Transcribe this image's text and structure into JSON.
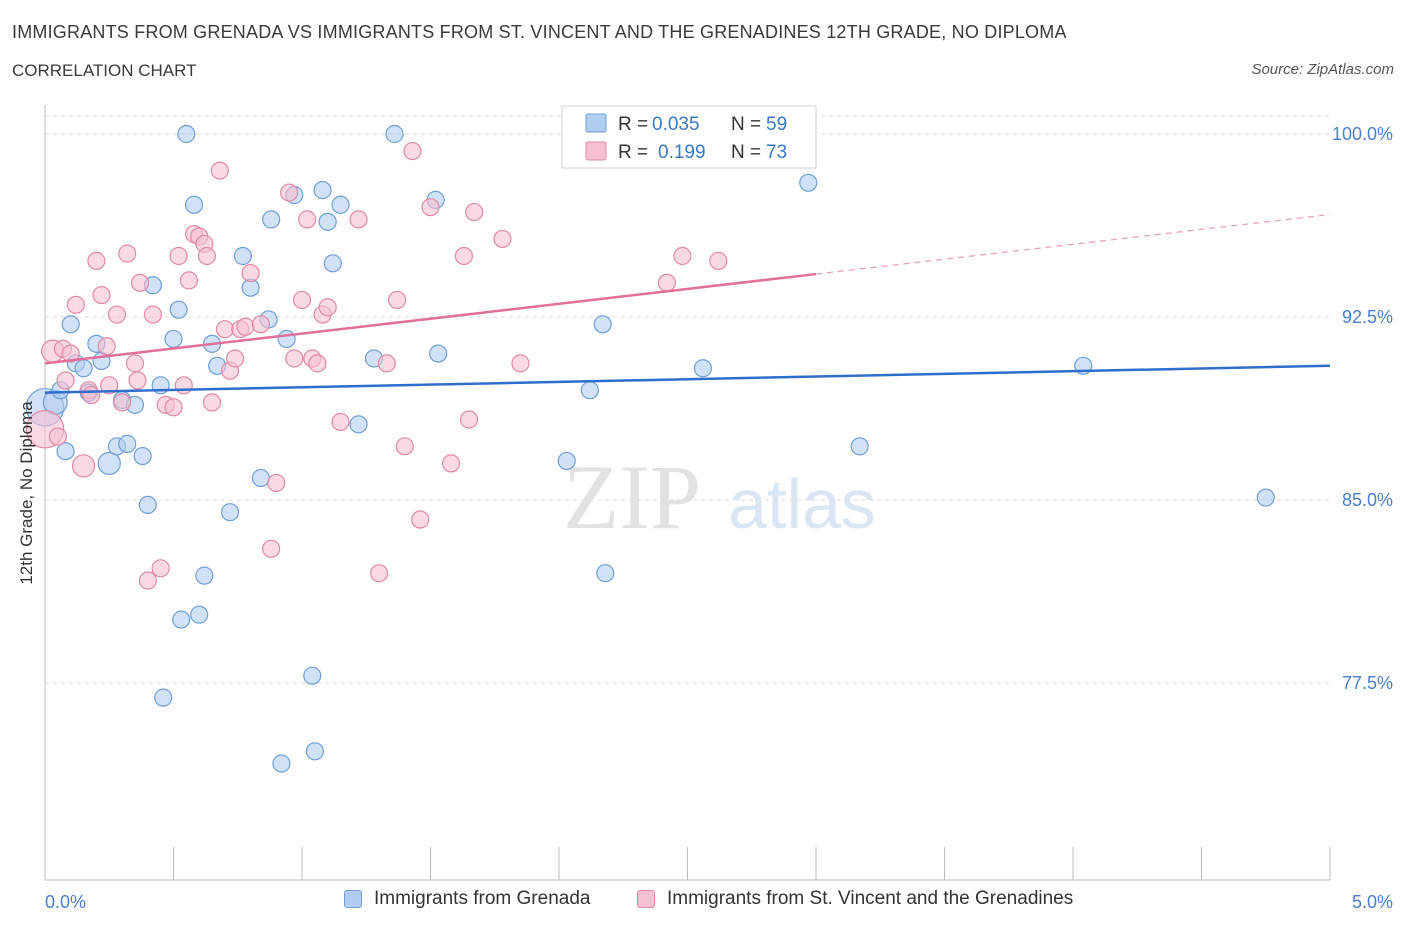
{
  "header": {
    "title": "IMMIGRANTS FROM GRENADA VS IMMIGRANTS FROM ST. VINCENT AND THE GRENADINES 12TH GRADE, NO DIPLOMA",
    "subtitle": "CORRELATION CHART",
    "source": "Source: ZipAtlas.com"
  },
  "watermark": {
    "zip": "ZIP",
    "atlas": "atlas"
  },
  "colors": {
    "blue_fill": "#b3cdf0",
    "blue_stroke": "#6f9fd8",
    "blue_line": "#2f6fcc",
    "pink_fill": "#f5c0d0",
    "pink_stroke": "#e08aa5",
    "pink_line": "#e0709a",
    "tick_label": "#4a7fcc",
    "grid": "#d8d8d8"
  },
  "chart_data": {
    "type": "scatter",
    "xlabel": "",
    "ylabel": "12th Grade, No Diploma",
    "xlim": [
      0.0,
      5.0
    ],
    "ylim": [
      70.0,
      101.0
    ],
    "x_tick_labels": [
      "0.0%",
      "5.0%"
    ],
    "y_ticks": [
      77.5,
      85.0,
      92.5,
      100.0
    ],
    "y_tick_labels": [
      "77.5%",
      "85.0%",
      "92.5%",
      "100.0%"
    ],
    "grid": true,
    "legend_position": "top-center",
    "stats": [
      {
        "r_label": "R =",
        "r_value": "0.035",
        "n_label": "N =",
        "n_value": "59"
      },
      {
        "r_label": "R =",
        "r_value": "0.199",
        "n_label": "N =",
        "n_value": "73"
      }
    ],
    "series": [
      {
        "name": "Immigrants from Grenada",
        "trend": {
          "x": [
            0.0,
            5.0
          ],
          "y": [
            89.4,
            90.5
          ],
          "dash_from": null
        },
        "points": [
          [
            0.0,
            88.8,
            2.2
          ],
          [
            0.04,
            89.0,
            1.4
          ],
          [
            0.06,
            89.5,
            1
          ],
          [
            0.08,
            87.0,
            1
          ],
          [
            0.1,
            92.2,
            1
          ],
          [
            0.12,
            90.6,
            1
          ],
          [
            0.15,
            90.4,
            1
          ],
          [
            0.17,
            89.4,
            1
          ],
          [
            0.2,
            91.4,
            1
          ],
          [
            0.22,
            90.7,
            1
          ],
          [
            0.25,
            86.5,
            1.3
          ],
          [
            0.28,
            87.2,
            1
          ],
          [
            0.3,
            89.1,
            1
          ],
          [
            0.32,
            87.3,
            1
          ],
          [
            0.35,
            88.9,
            1
          ],
          [
            0.38,
            86.8,
            1
          ],
          [
            0.4,
            84.8,
            1
          ],
          [
            0.42,
            93.8,
            1
          ],
          [
            0.45,
            89.7,
            1
          ],
          [
            0.46,
            76.9,
            1
          ],
          [
            0.5,
            91.6,
            1
          ],
          [
            0.52,
            92.8,
            1
          ],
          [
            0.53,
            80.1,
            1
          ],
          [
            0.55,
            100.0,
            1
          ],
          [
            0.58,
            97.1,
            1
          ],
          [
            0.6,
            80.3,
            1
          ],
          [
            0.62,
            81.9,
            1
          ],
          [
            0.65,
            91.4,
            1
          ],
          [
            0.67,
            90.5,
            1
          ],
          [
            0.72,
            84.5,
            1
          ],
          [
            0.77,
            95.0,
            1
          ],
          [
            0.8,
            93.7,
            1
          ],
          [
            0.84,
            85.9,
            1
          ],
          [
            0.87,
            92.4,
            1
          ],
          [
            0.88,
            96.5,
            1
          ],
          [
            0.92,
            74.2,
            1
          ],
          [
            0.94,
            91.6,
            1
          ],
          [
            0.97,
            97.5,
            1
          ],
          [
            1.04,
            77.8,
            1
          ],
          [
            1.05,
            74.7,
            1
          ],
          [
            1.08,
            97.7,
            1
          ],
          [
            1.1,
            96.4,
            1
          ],
          [
            1.12,
            94.7,
            1
          ],
          [
            1.15,
            97.1,
            1
          ],
          [
            1.22,
            88.1,
            1
          ],
          [
            1.28,
            90.8,
            1
          ],
          [
            1.36,
            100.0,
            1
          ],
          [
            1.52,
            97.3,
            1
          ],
          [
            1.53,
            91.0,
            1
          ],
          [
            2.03,
            86.6,
            1
          ],
          [
            2.12,
            89.5,
            1
          ],
          [
            2.17,
            92.2,
            1
          ],
          [
            2.18,
            82.0,
            1
          ],
          [
            2.56,
            90.4,
            1
          ],
          [
            2.97,
            98.0,
            1
          ],
          [
            3.17,
            87.2,
            1
          ],
          [
            4.04,
            90.5,
            1
          ],
          [
            4.75,
            85.1,
            1
          ]
        ]
      },
      {
        "name": "Immigrants from St. Vincent and the Grenadines",
        "trend": {
          "x": [
            0.0,
            5.0
          ],
          "y": [
            90.6,
            96.7
          ],
          "dash_from": 3.0
        },
        "points": [
          [
            0.0,
            87.9,
            2.2
          ],
          [
            0.03,
            91.1,
            1.3
          ],
          [
            0.05,
            87.6,
            1
          ],
          [
            0.07,
            91.2,
            1
          ],
          [
            0.08,
            89.9,
            1
          ],
          [
            0.1,
            91.0,
            1
          ],
          [
            0.12,
            93.0,
            1
          ],
          [
            0.15,
            86.4,
            1.3
          ],
          [
            0.17,
            89.5,
            1
          ],
          [
            0.18,
            89.3,
            1
          ],
          [
            0.2,
            94.8,
            1
          ],
          [
            0.22,
            93.4,
            1
          ],
          [
            0.24,
            91.3,
            1
          ],
          [
            0.25,
            89.7,
            1
          ],
          [
            0.28,
            92.6,
            1
          ],
          [
            0.3,
            89.0,
            1
          ],
          [
            0.32,
            95.1,
            1
          ],
          [
            0.35,
            90.6,
            1
          ],
          [
            0.36,
            89.9,
            1
          ],
          [
            0.37,
            93.9,
            1
          ],
          [
            0.4,
            81.7,
            1
          ],
          [
            0.42,
            92.6,
            1
          ],
          [
            0.45,
            82.2,
            1
          ],
          [
            0.47,
            88.9,
            1
          ],
          [
            0.5,
            88.8,
            1
          ],
          [
            0.52,
            95.0,
            1
          ],
          [
            0.54,
            89.7,
            1
          ],
          [
            0.56,
            94.0,
            1
          ],
          [
            0.58,
            95.9,
            1
          ],
          [
            0.6,
            95.8,
            1
          ],
          [
            0.62,
            95.5,
            1
          ],
          [
            0.63,
            95.0,
            1
          ],
          [
            0.65,
            89.0,
            1
          ],
          [
            0.68,
            98.5,
            1
          ],
          [
            0.7,
            92.0,
            1
          ],
          [
            0.72,
            90.3,
            1
          ],
          [
            0.74,
            90.8,
            1
          ],
          [
            0.76,
            92.0,
            1
          ],
          [
            0.78,
            92.1,
            1
          ],
          [
            0.8,
            94.3,
            1
          ],
          [
            0.84,
            92.2,
            1
          ],
          [
            0.88,
            83.0,
            1
          ],
          [
            0.9,
            85.7,
            1
          ],
          [
            0.95,
            97.6,
            1
          ],
          [
            0.97,
            90.8,
            1
          ],
          [
            1.0,
            93.2,
            1
          ],
          [
            1.02,
            96.5,
            1
          ],
          [
            1.04,
            90.8,
            1
          ],
          [
            1.06,
            90.6,
            1
          ],
          [
            1.08,
            92.6,
            1
          ],
          [
            1.1,
            92.9,
            1
          ],
          [
            1.15,
            88.2,
            1
          ],
          [
            1.22,
            96.5,
            1
          ],
          [
            1.3,
            82.0,
            1
          ],
          [
            1.33,
            90.6,
            1
          ],
          [
            1.37,
            93.2,
            1
          ],
          [
            1.4,
            87.2,
            1
          ],
          [
            1.43,
            99.3,
            1
          ],
          [
            1.46,
            84.2,
            1
          ],
          [
            1.5,
            97.0,
            1
          ],
          [
            1.58,
            86.5,
            1
          ],
          [
            1.63,
            95.0,
            1
          ],
          [
            1.65,
            88.3,
            1
          ],
          [
            1.67,
            96.8,
            1
          ],
          [
            1.78,
            95.7,
            1
          ],
          [
            1.85,
            90.6,
            1
          ],
          [
            2.42,
            93.9,
            1
          ],
          [
            2.48,
            95.0,
            1
          ],
          [
            2.62,
            94.8,
            1
          ]
        ]
      }
    ]
  }
}
